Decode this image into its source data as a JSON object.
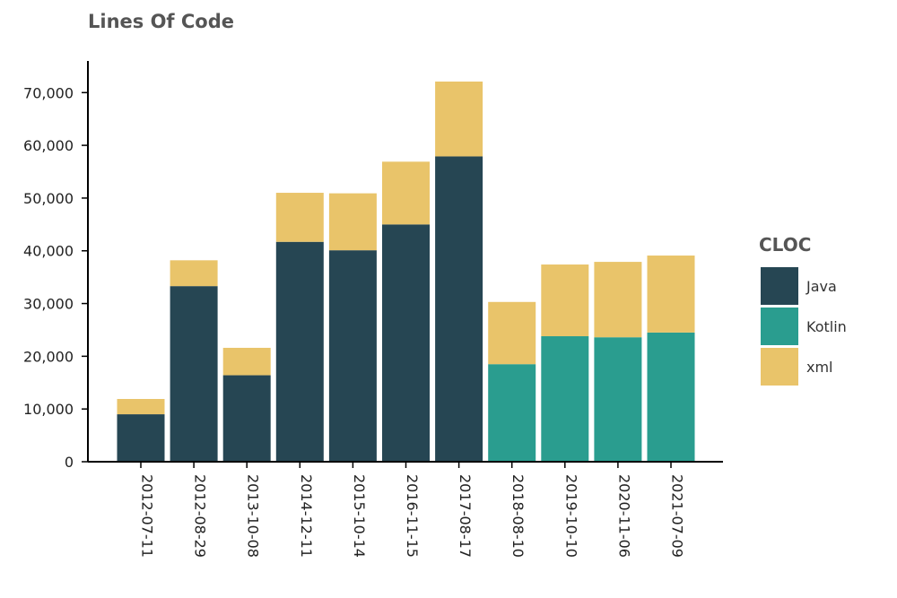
{
  "chart_data": {
    "type": "bar",
    "stacked": true,
    "title": "Lines Of Code",
    "xlabel": "",
    "ylabel": "",
    "ylim": [
      0,
      76000
    ],
    "yticks": [
      0,
      10000,
      20000,
      30000,
      40000,
      50000,
      60000,
      70000
    ],
    "ytick_labels": [
      "0",
      "10,000",
      "20,000",
      "30,000",
      "40,000",
      "50,000",
      "60,000",
      "70,000"
    ],
    "categories": [
      "2012-07-11",
      "2012-08-29",
      "2013-10-08",
      "2014-12-11",
      "2015-10-14",
      "2016-11-15",
      "2017-08-17",
      "2018-08-10",
      "2019-10-10",
      "2020-11-06",
      "2021-07-09"
    ],
    "series": [
      {
        "name": "Java",
        "color": "#264653",
        "values": [
          9000,
          33300,
          16400,
          41700,
          40100,
          45000,
          57900,
          0,
          0,
          0,
          0
        ]
      },
      {
        "name": "Kotlin",
        "color": "#2a9d8f",
        "values": [
          0,
          0,
          0,
          0,
          0,
          0,
          0,
          18500,
          23800,
          23600,
          24500
        ]
      },
      {
        "name": "xml",
        "color": "#e9c46a",
        "values": [
          2900,
          4900,
          5200,
          9300,
          10800,
          11900,
          14200,
          11800,
          13600,
          14300,
          14600
        ]
      }
    ],
    "legend": {
      "title": "CLOC",
      "position": "right"
    },
    "grid": false
  }
}
